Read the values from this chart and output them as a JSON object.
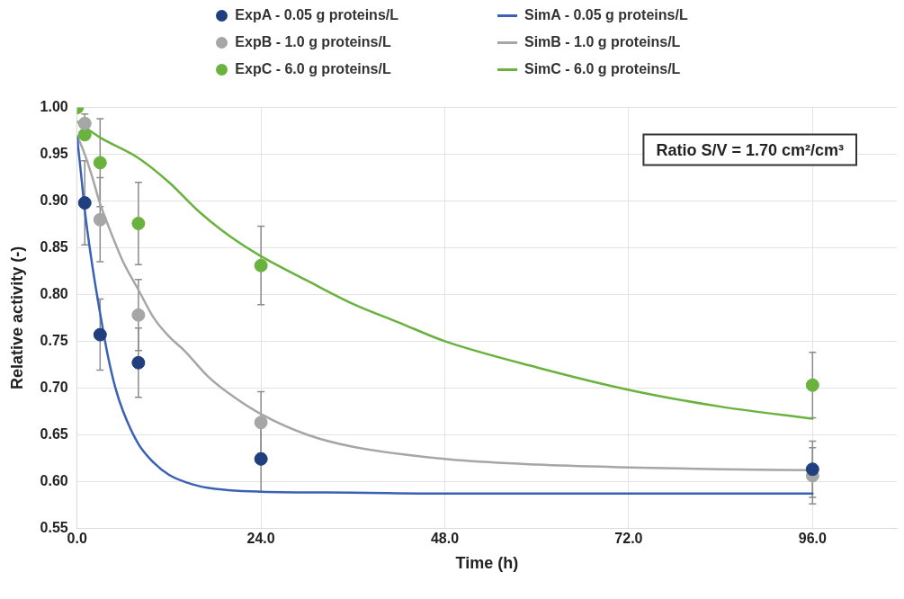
{
  "chart_data": {
    "type": "scatter",
    "xlabel": "Time (h)",
    "ylabel": "Relative activity (-)",
    "xlim": [
      0,
      107
    ],
    "xticks": [
      {
        "value": 0,
        "label": "0.0"
      },
      {
        "value": 24,
        "label": "24.0"
      },
      {
        "value": 48,
        "label": "48.0"
      },
      {
        "value": 72,
        "label": "72.0"
      },
      {
        "value": 96,
        "label": "96.0"
      }
    ],
    "ylim": [
      0.55,
      1.0
    ],
    "yticks": [
      {
        "value": 0.55,
        "label": "0.55"
      },
      {
        "value": 0.6,
        "label": "0.60"
      },
      {
        "value": 0.65,
        "label": "0.65"
      },
      {
        "value": 0.7,
        "label": "0.70"
      },
      {
        "value": 0.75,
        "label": "0.75"
      },
      {
        "value": 0.8,
        "label": "0.80"
      },
      {
        "value": 0.85,
        "label": "0.85"
      },
      {
        "value": 0.9,
        "label": "0.90"
      },
      {
        "value": 0.95,
        "label": "0.95"
      },
      {
        "value": 1.0,
        "label": "1.00"
      }
    ],
    "grid": true,
    "legend": "top",
    "annotations": [
      "Ratio S/V = 1.70 cm²/cm³"
    ],
    "series": [
      {
        "name": "ExpA - 0.05 g proteins/L",
        "marker": "circle",
        "color": "#1f3f7f",
        "x": [
          1,
          3,
          8,
          24,
          96
        ],
        "values": [
          0.898,
          0.757,
          0.727,
          0.624,
          0.613
        ],
        "errors": [
          0.045,
          0.038,
          0.037,
          0.035,
          0.03
        ]
      },
      {
        "name": "SimA - 0.05 g proteins/L",
        "type": "line",
        "marker": "none",
        "color": "#3a62b4",
        "x": [
          0,
          0.5,
          1,
          2,
          3,
          4,
          5,
          6,
          8,
          10,
          12,
          15,
          18,
          24,
          36,
          48,
          72,
          96
        ],
        "values": [
          0.968,
          0.93,
          0.89,
          0.83,
          0.78,
          0.735,
          0.7,
          0.675,
          0.64,
          0.62,
          0.607,
          0.597,
          0.592,
          0.589,
          0.588,
          0.587,
          0.587,
          0.587
        ]
      },
      {
        "name": "ExpB - 1.0 g proteins/L",
        "marker": "circle",
        "color": "#a6a6a6",
        "x": [
          1,
          3,
          8,
          24,
          96
        ],
        "values": [
          0.983,
          0.88,
          0.778,
          0.663,
          0.606
        ],
        "errors": [
          0.01,
          0.045,
          0.038,
          0.033,
          0.03
        ]
      },
      {
        "name": "SimB - 1.0 g proteins/L",
        "type": "line",
        "marker": "none",
        "color": "#a6a6a6",
        "x": [
          0,
          1,
          2,
          3,
          4,
          6,
          8,
          10,
          12,
          14,
          17,
          20,
          24,
          30,
          36,
          48,
          60,
          72,
          84,
          96
        ],
        "values": [
          0.97,
          0.95,
          0.925,
          0.897,
          0.875,
          0.835,
          0.805,
          0.775,
          0.755,
          0.74,
          0.713,
          0.693,
          0.672,
          0.65,
          0.637,
          0.624,
          0.618,
          0.615,
          0.613,
          0.612
        ]
      },
      {
        "name": "ExpC - 6.0 g proteins/L",
        "marker": "circle",
        "color": "#6ab23e",
        "x": [
          0,
          1,
          3,
          8,
          24,
          96
        ],
        "values": [
          1.0,
          0.971,
          0.941,
          0.876,
          0.831,
          0.703
        ],
        "errors": [
          null,
          null,
          0.047,
          0.044,
          0.042,
          0.035
        ]
      },
      {
        "name": "SimC - 6.0 g proteins/L",
        "type": "line",
        "marker": "none",
        "color": "#6ab23e",
        "x": [
          0,
          3,
          8,
          12,
          16,
          20,
          24,
          30,
          36,
          42,
          48,
          60,
          72,
          84,
          96
        ],
        "values": [
          0.985,
          0.968,
          0.946,
          0.92,
          0.888,
          0.862,
          0.841,
          0.815,
          0.79,
          0.77,
          0.75,
          0.722,
          0.698,
          0.68,
          0.667
        ]
      }
    ]
  }
}
